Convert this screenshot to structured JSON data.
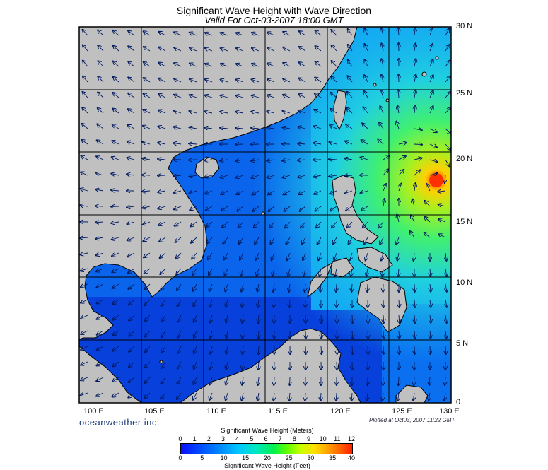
{
  "title": "Significant Wave Height with Wave Direction",
  "subtitle": "Valid For Oct-03-2007 18:00 GMT",
  "lat_labels": [
    "30 N",
    "25 N",
    "20 N",
    "15 N",
    "10 N",
    "5 N",
    "0"
  ],
  "lon_labels": [
    "100 E",
    "105 E",
    "110 E",
    "115 E",
    "120 E",
    "125 E",
    "130 E"
  ],
  "brand": "oceanweather inc.",
  "plotted": "Plotted at Oct03, 2007 11:22 GMT",
  "colorbar": {
    "meters_title": "Significant Wave Height (Meters)",
    "meters_ticks": [
      "0",
      "1",
      "2",
      "3",
      "4",
      "5",
      "6",
      "7",
      "8",
      "9",
      "10",
      "11",
      "12"
    ],
    "feet_title": "Significant Wave Height (Feet)",
    "feet_ticks": [
      "0",
      "5",
      "10",
      "15",
      "20",
      "25",
      "30",
      "35",
      "40"
    ]
  },
  "colors": {
    "land": "#c0c0c0",
    "deep_blue": "#0a2fd8",
    "mid_blue": "#0a7ef5",
    "cyan": "#18c8f0",
    "green": "#38f070",
    "peak": "#ff3000"
  }
}
